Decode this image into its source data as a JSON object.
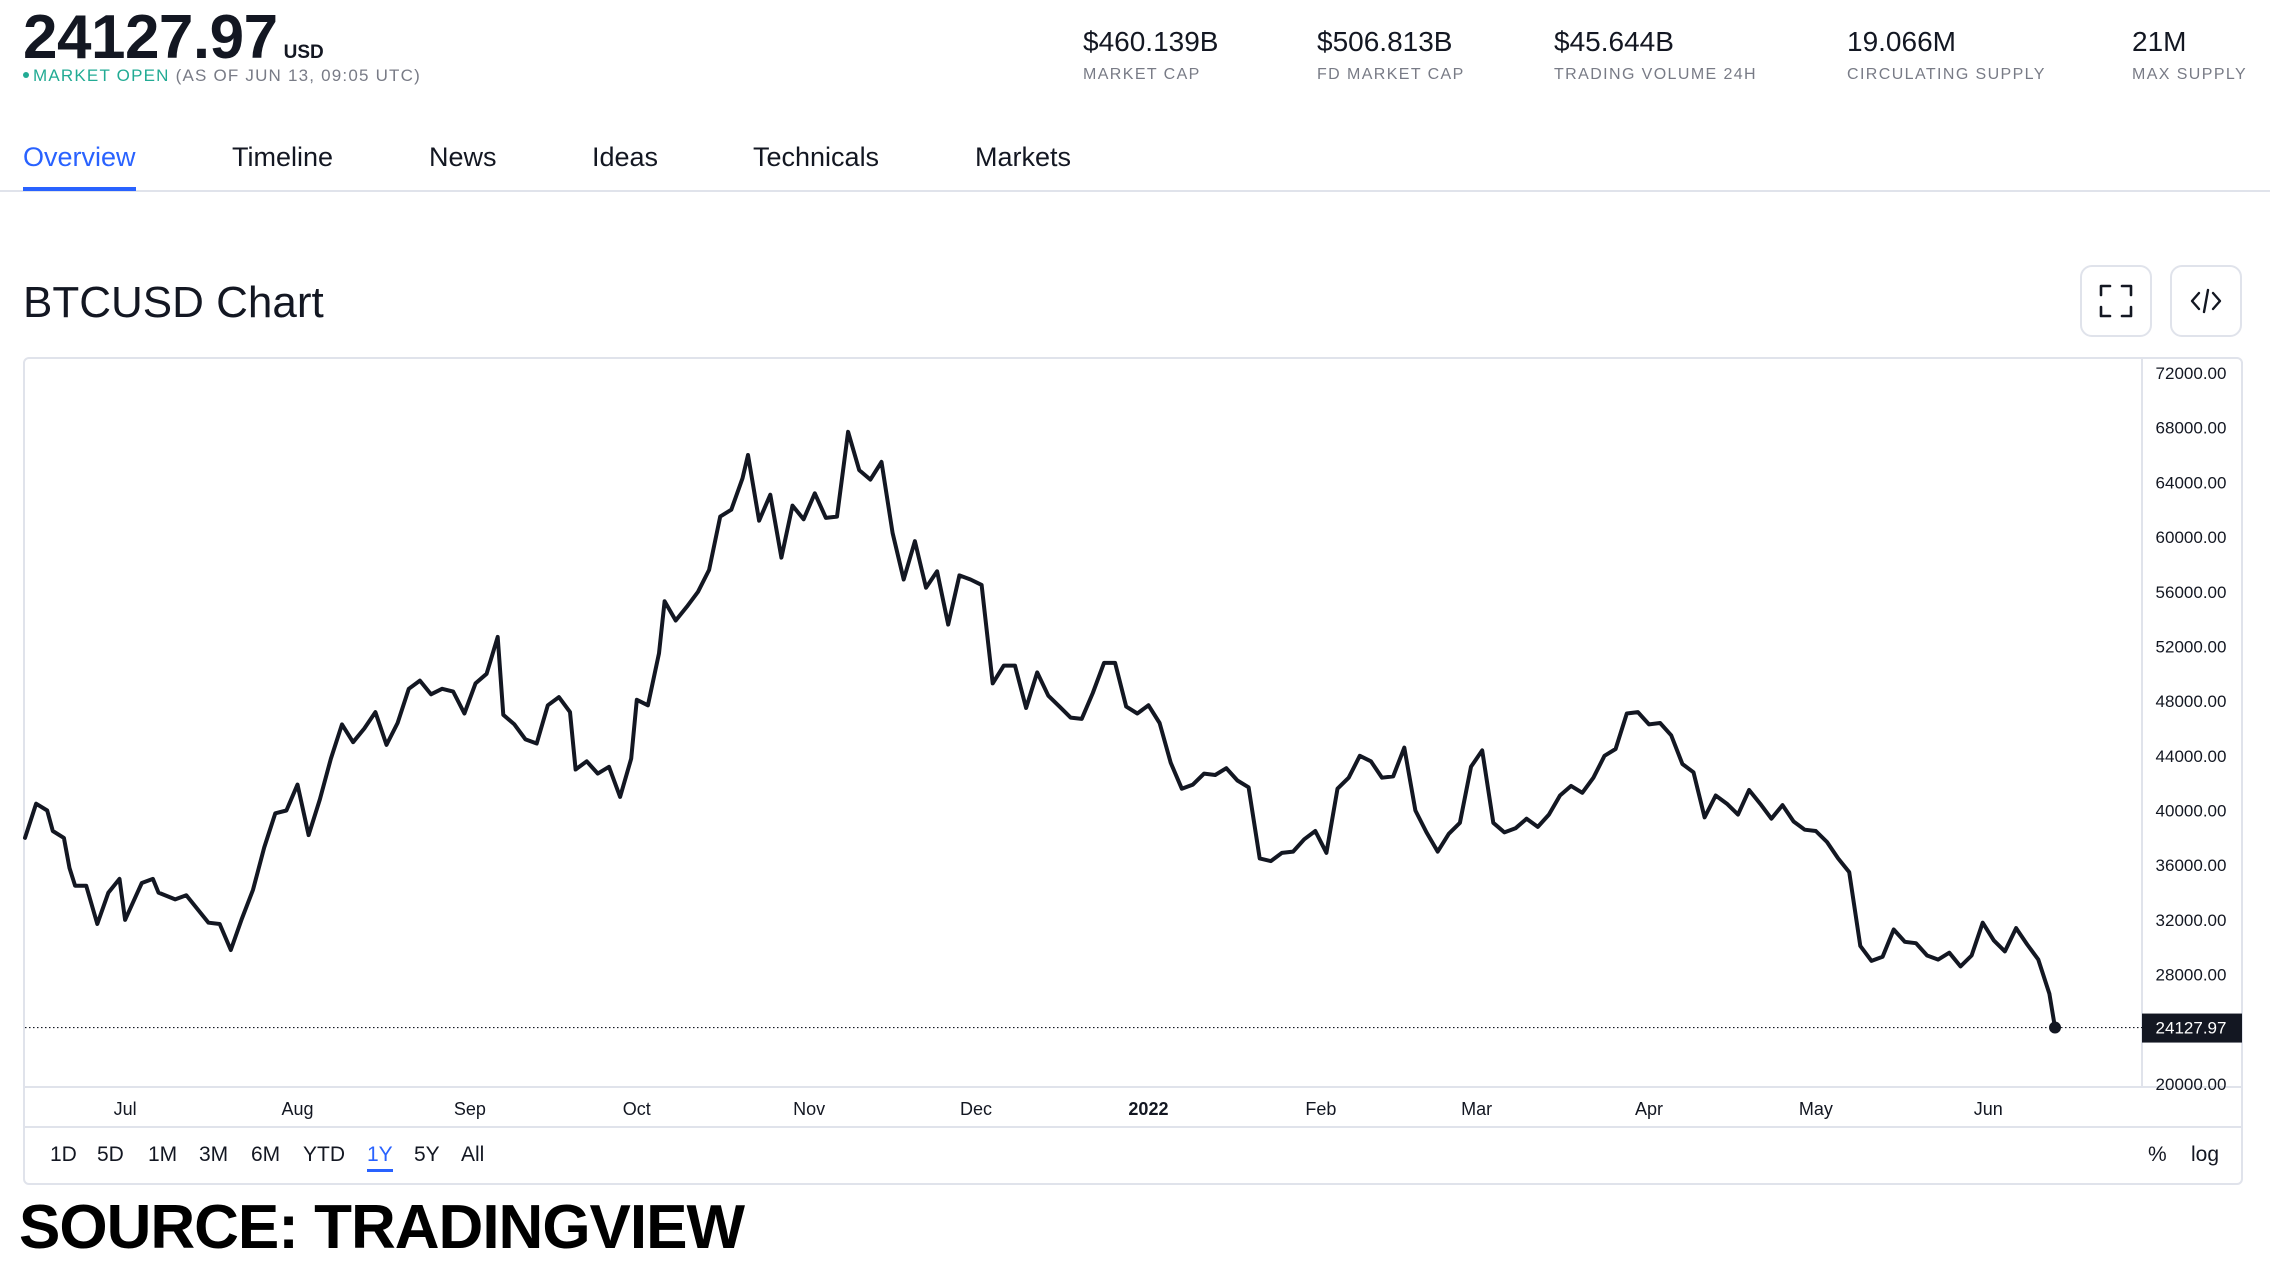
{
  "header": {
    "price": "24127.97",
    "currency": "USD",
    "status": "MARKET OPEN",
    "as_of": "(AS OF JUN 13, 09:05 UTC)",
    "status_color": "#22ab94"
  },
  "stats": [
    {
      "value": "$460.139B",
      "label": "MARKET CAP"
    },
    {
      "value": "$506.813B",
      "label": "FD MARKET CAP"
    },
    {
      "value": "$45.644B",
      "label": "TRADING VOLUME 24H"
    },
    {
      "value": "19.066M",
      "label": "CIRCULATING SUPPLY"
    },
    {
      "value": "21M",
      "label": "MAX SUPPLY"
    }
  ],
  "tabs": [
    {
      "label": "Overview",
      "active": true
    },
    {
      "label": "Timeline"
    },
    {
      "label": "News"
    },
    {
      "label": "Ideas"
    },
    {
      "label": "Technicals"
    },
    {
      "label": "Markets"
    }
  ],
  "chart_title": "BTCUSD Chart",
  "icons": {
    "fullscreen": "fullscreen-icon",
    "embed": "embed-code-icon"
  },
  "ranges": {
    "items": [
      "1D",
      "5D",
      "1M",
      "3M",
      "6M",
      "YTD",
      "1Y",
      "5Y",
      "All"
    ],
    "active": "1Y",
    "right": [
      "%",
      "log"
    ]
  },
  "accent_color": "#2962ff",
  "source": "SOURCE: TRADINGVIEW",
  "chart_data": {
    "type": "line",
    "title": "",
    "xlabel": "",
    "ylabel": "",
    "x_range": [
      "2021-06-13",
      "2022-06-13"
    ],
    "ylim": [
      20000,
      72000
    ],
    "y_ticks": [
      "72000.00",
      "68000.00",
      "64000.00",
      "60000.00",
      "56000.00",
      "52000.00",
      "48000.00",
      "44000.00",
      "40000.00",
      "36000.00",
      "32000.00",
      "28000.00",
      "20000.00"
    ],
    "x_tick_labels": [
      {
        "label": "Jul",
        "date": "2021-07-01"
      },
      {
        "label": "Aug",
        "date": "2021-08-01"
      },
      {
        "label": "Sep",
        "date": "2021-09-01"
      },
      {
        "label": "Oct",
        "date": "2021-10-01"
      },
      {
        "label": "Nov",
        "date": "2021-11-01"
      },
      {
        "label": "Dec",
        "date": "2021-12-01"
      },
      {
        "label": "2022",
        "date": "2022-01-01",
        "bold": true
      },
      {
        "label": "Feb",
        "date": "2022-02-01"
      },
      {
        "label": "Mar",
        "date": "2022-03-01"
      },
      {
        "label": "Apr",
        "date": "2022-04-01"
      },
      {
        "label": "May",
        "date": "2022-05-01"
      },
      {
        "label": "Jun",
        "date": "2022-06-01"
      }
    ],
    "last_value_label": "24127.97",
    "last_value": 24127.97,
    "line_color": "#131722",
    "series": [
      {
        "points": [
          [
            "2021-06-13",
            38000
          ],
          [
            "2021-06-15",
            40500
          ],
          [
            "2021-06-17",
            40000
          ],
          [
            "2021-06-18",
            38500
          ],
          [
            "2021-06-20",
            38000
          ],
          [
            "2021-06-21",
            35800
          ],
          [
            "2021-06-22",
            34500
          ],
          [
            "2021-06-24",
            34500
          ],
          [
            "2021-06-26",
            31700
          ],
          [
            "2021-06-28",
            34000
          ],
          [
            "2021-06-30",
            35000
          ],
          [
            "2021-07-01",
            32000
          ],
          [
            "2021-07-03",
            33800
          ],
          [
            "2021-07-04",
            34700
          ],
          [
            "2021-07-06",
            35000
          ],
          [
            "2021-07-07",
            34000
          ],
          [
            "2021-07-10",
            33500
          ],
          [
            "2021-07-12",
            33800
          ],
          [
            "2021-07-14",
            32800
          ],
          [
            "2021-07-16",
            31800
          ],
          [
            "2021-07-18",
            31700
          ],
          [
            "2021-07-20",
            29800
          ],
          [
            "2021-07-22",
            32100
          ],
          [
            "2021-07-24",
            34200
          ],
          [
            "2021-07-26",
            37300
          ],
          [
            "2021-07-28",
            39800
          ],
          [
            "2021-07-30",
            40000
          ],
          [
            "2021-08-01",
            41900
          ],
          [
            "2021-08-03",
            38200
          ],
          [
            "2021-08-05",
            40800
          ],
          [
            "2021-08-07",
            43800
          ],
          [
            "2021-08-09",
            46300
          ],
          [
            "2021-08-11",
            45000
          ],
          [
            "2021-08-13",
            46000
          ],
          [
            "2021-08-15",
            47200
          ],
          [
            "2021-08-17",
            44800
          ],
          [
            "2021-08-19",
            46400
          ],
          [
            "2021-08-21",
            48900
          ],
          [
            "2021-08-23",
            49500
          ],
          [
            "2021-08-25",
            48500
          ],
          [
            "2021-08-27",
            48900
          ],
          [
            "2021-08-29",
            48700
          ],
          [
            "2021-08-31",
            47100
          ],
          [
            "2021-09-02",
            49300
          ],
          [
            "2021-09-04",
            50000
          ],
          [
            "2021-09-06",
            52700
          ],
          [
            "2021-09-07",
            47000
          ],
          [
            "2021-09-09",
            46300
          ],
          [
            "2021-09-11",
            45200
          ],
          [
            "2021-09-13",
            44900
          ],
          [
            "2021-09-15",
            47700
          ],
          [
            "2021-09-17",
            48300
          ],
          [
            "2021-09-19",
            47200
          ],
          [
            "2021-09-20",
            43000
          ],
          [
            "2021-09-22",
            43600
          ],
          [
            "2021-09-24",
            42700
          ],
          [
            "2021-09-26",
            43200
          ],
          [
            "2021-09-28",
            41000
          ],
          [
            "2021-09-30",
            43800
          ],
          [
            "2021-10-01",
            48100
          ],
          [
            "2021-10-03",
            47700
          ],
          [
            "2021-10-05",
            51500
          ],
          [
            "2021-10-06",
            55300
          ],
          [
            "2021-10-08",
            53900
          ],
          [
            "2021-10-10",
            54900
          ],
          [
            "2021-10-12",
            56000
          ],
          [
            "2021-10-14",
            57600
          ],
          [
            "2021-10-16",
            61500
          ],
          [
            "2021-10-18",
            62000
          ],
          [
            "2021-10-20",
            64300
          ],
          [
            "2021-10-21",
            66000
          ],
          [
            "2021-10-23",
            61200
          ],
          [
            "2021-10-25",
            63100
          ],
          [
            "2021-10-27",
            58500
          ],
          [
            "2021-10-29",
            62300
          ],
          [
            "2021-10-31",
            61300
          ],
          [
            "2021-11-02",
            63200
          ],
          [
            "2021-11-04",
            61400
          ],
          [
            "2021-11-06",
            61500
          ],
          [
            "2021-11-08",
            67700
          ],
          [
            "2021-11-10",
            64900
          ],
          [
            "2021-11-12",
            64200
          ],
          [
            "2021-11-14",
            65500
          ],
          [
            "2021-11-16",
            60300
          ],
          [
            "2021-11-18",
            56900
          ],
          [
            "2021-11-20",
            59700
          ],
          [
            "2021-11-22",
            56300
          ],
          [
            "2021-11-24",
            57500
          ],
          [
            "2021-11-26",
            53600
          ],
          [
            "2021-11-28",
            57200
          ],
          [
            "2021-11-30",
            56900
          ],
          [
            "2021-12-02",
            56500
          ],
          [
            "2021-12-04",
            49300
          ],
          [
            "2021-12-06",
            50600
          ],
          [
            "2021-12-08",
            50600
          ],
          [
            "2021-12-10",
            47500
          ],
          [
            "2021-12-12",
            50100
          ],
          [
            "2021-12-14",
            48400
          ],
          [
            "2021-12-16",
            47600
          ],
          [
            "2021-12-18",
            46800
          ],
          [
            "2021-12-20",
            46700
          ],
          [
            "2021-12-22",
            48600
          ],
          [
            "2021-12-24",
            50800
          ],
          [
            "2021-12-26",
            50800
          ],
          [
            "2021-12-28",
            47600
          ],
          [
            "2021-12-30",
            47100
          ],
          [
            "2022-01-01",
            47700
          ],
          [
            "2022-01-03",
            46400
          ],
          [
            "2022-01-05",
            43500
          ],
          [
            "2022-01-07",
            41600
          ],
          [
            "2022-01-09",
            41900
          ],
          [
            "2022-01-11",
            42700
          ],
          [
            "2022-01-13",
            42600
          ],
          [
            "2022-01-15",
            43100
          ],
          [
            "2022-01-17",
            42200
          ],
          [
            "2022-01-19",
            41700
          ],
          [
            "2022-01-21",
            36500
          ],
          [
            "2022-01-23",
            36300
          ],
          [
            "2022-01-25",
            36900
          ],
          [
            "2022-01-27",
            37000
          ],
          [
            "2022-01-29",
            37900
          ],
          [
            "2022-01-31",
            38500
          ],
          [
            "2022-02-02",
            36900
          ],
          [
            "2022-02-04",
            41600
          ],
          [
            "2022-02-06",
            42400
          ],
          [
            "2022-02-08",
            44000
          ],
          [
            "2022-02-10",
            43600
          ],
          [
            "2022-02-12",
            42400
          ],
          [
            "2022-02-14",
            42500
          ],
          [
            "2022-02-16",
            44600
          ],
          [
            "2022-02-18",
            40000
          ],
          [
            "2022-02-20",
            38400
          ],
          [
            "2022-02-22",
            37000
          ],
          [
            "2022-02-24",
            38300
          ],
          [
            "2022-02-26",
            39100
          ],
          [
            "2022-02-28",
            43200
          ],
          [
            "2022-03-02",
            44400
          ],
          [
            "2022-03-04",
            39100
          ],
          [
            "2022-03-06",
            38400
          ],
          [
            "2022-03-08",
            38700
          ],
          [
            "2022-03-10",
            39400
          ],
          [
            "2022-03-12",
            38800
          ],
          [
            "2022-03-14",
            39700
          ],
          [
            "2022-03-16",
            41100
          ],
          [
            "2022-03-18",
            41800
          ],
          [
            "2022-03-20",
            41300
          ],
          [
            "2022-03-22",
            42400
          ],
          [
            "2022-03-24",
            44000
          ],
          [
            "2022-03-26",
            44500
          ],
          [
            "2022-03-28",
            47100
          ],
          [
            "2022-03-30",
            47200
          ],
          [
            "2022-04-01",
            46300
          ],
          [
            "2022-04-03",
            46400
          ],
          [
            "2022-04-05",
            45500
          ],
          [
            "2022-04-07",
            43400
          ],
          [
            "2022-04-09",
            42800
          ],
          [
            "2022-04-11",
            39500
          ],
          [
            "2022-04-13",
            41100
          ],
          [
            "2022-04-15",
            40500
          ],
          [
            "2022-04-17",
            39700
          ],
          [
            "2022-04-19",
            41500
          ],
          [
            "2022-04-21",
            40500
          ],
          [
            "2022-04-23",
            39400
          ],
          [
            "2022-04-25",
            40400
          ],
          [
            "2022-04-27",
            39200
          ],
          [
            "2022-04-29",
            38600
          ],
          [
            "2022-05-01",
            38500
          ],
          [
            "2022-05-03",
            37700
          ],
          [
            "2022-05-05",
            36500
          ],
          [
            "2022-05-07",
            35500
          ],
          [
            "2022-05-09",
            30100
          ],
          [
            "2022-05-11",
            29000
          ],
          [
            "2022-05-13",
            29300
          ],
          [
            "2022-05-15",
            31300
          ],
          [
            "2022-05-17",
            30400
          ],
          [
            "2022-05-19",
            30300
          ],
          [
            "2022-05-21",
            29400
          ],
          [
            "2022-05-23",
            29100
          ],
          [
            "2022-05-25",
            29600
          ],
          [
            "2022-05-27",
            28600
          ],
          [
            "2022-05-29",
            29400
          ],
          [
            "2022-05-31",
            31800
          ],
          [
            "2022-06-02",
            30500
          ],
          [
            "2022-06-04",
            29700
          ],
          [
            "2022-06-06",
            31400
          ],
          [
            "2022-06-08",
            30200
          ],
          [
            "2022-06-10",
            29100
          ],
          [
            "2022-06-12",
            26600
          ],
          [
            "2022-06-13",
            24127.97
          ]
        ]
      }
    ]
  }
}
